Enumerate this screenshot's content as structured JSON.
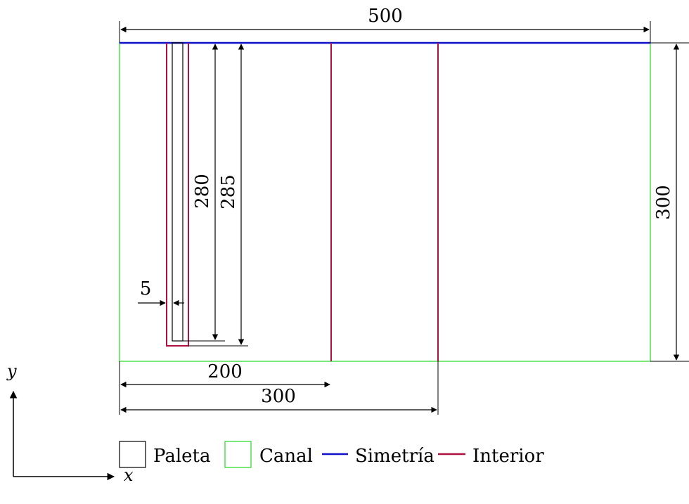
{
  "dimensions": {
    "width_total": "500",
    "height_total": "300",
    "blade_length": "280",
    "interior_length": "285",
    "gap": "5",
    "interior_line_1": "200",
    "interior_line_2": "300"
  },
  "axes": {
    "x_label": "x",
    "y_label": "y"
  },
  "legend": {
    "paleta": "Paleta",
    "canal": "Canal",
    "simetria": "Simetría",
    "interior": "Interior"
  },
  "colors": {
    "canal": "#33dd33",
    "simetria": "#1111cc",
    "interior": "#b0103f",
    "paleta": "#000000"
  }
}
